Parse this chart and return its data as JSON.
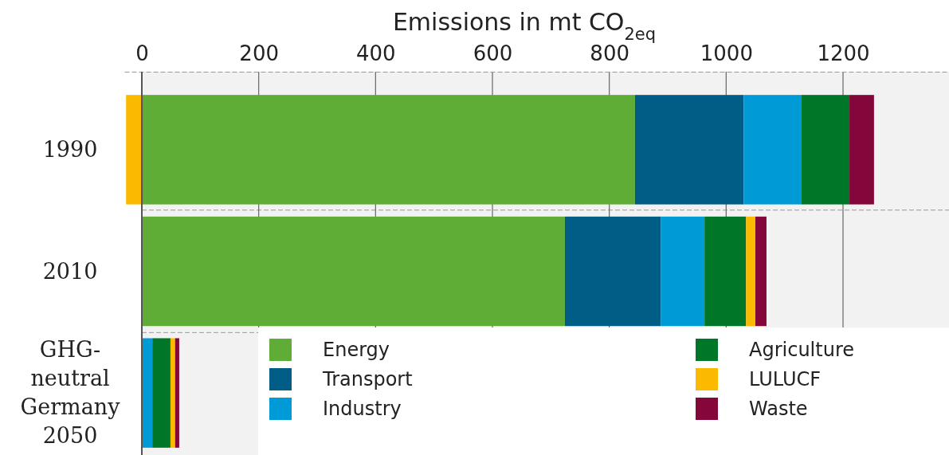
{
  "chart_data": {
    "type": "bar",
    "orientation": "horizontal",
    "stacked": true,
    "xlabel": "Emissions in mt CO$_{2eq}$",
    "categories": [
      "1990",
      "2010",
      "GHG-neutral Germany 2050"
    ],
    "series": [
      {
        "name": "Energy",
        "color": "#5fad37",
        "values": [
          844,
          724,
          0
        ]
      },
      {
        "name": "Transport",
        "color": "#005d86",
        "values": [
          186,
          164,
          0
        ]
      },
      {
        "name": "Industry",
        "color": "#009ad6",
        "values": [
          99,
          75,
          18
        ]
      },
      {
        "name": "Agriculture",
        "color": "#007629",
        "values": [
          82,
          71,
          31
        ]
      },
      {
        "name": "LULUCF",
        "color": "#fbb900",
        "values": [
          -27,
          16,
          8
        ]
      },
      {
        "name": "Waste",
        "color": "#830739",
        "values": [
          42,
          19,
          7
        ]
      }
    ],
    "xlim": [
      -30,
      1380
    ],
    "xticks": [
      0,
      200,
      400,
      600,
      800,
      1000,
      1200
    ],
    "grid": "x",
    "legend": "bottom"
  }
}
